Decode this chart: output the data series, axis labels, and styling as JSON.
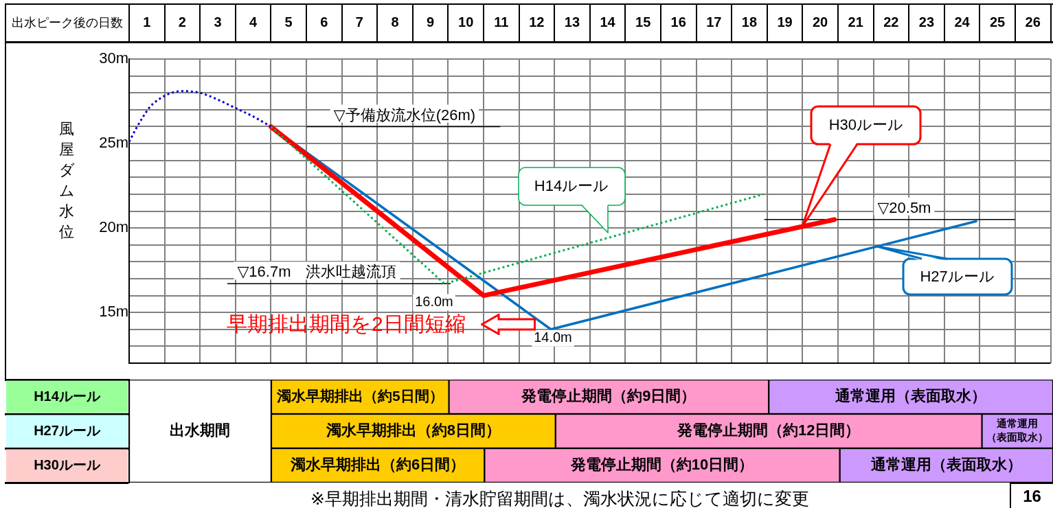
{
  "chart_data": [
    {
      "type": "line",
      "xlabel": "出水ピーク後の日数",
      "ylabel": "風屋ダム水位",
      "xlim": [
        0.5,
        26.5
      ],
      "xticks": [
        1,
        2,
        3,
        4,
        5,
        6,
        7,
        8,
        9,
        10,
        11,
        12,
        13,
        14,
        15,
        16,
        17,
        18,
        19,
        20,
        21,
        22,
        23,
        24,
        25,
        26
      ],
      "ylim": [
        12,
        30
      ],
      "yticks": [
        {
          "value": 12,
          "label": null
        },
        {
          "value": 13,
          "label": null
        },
        {
          "value": 14,
          "label": null
        },
        {
          "value": 15,
          "label": "15m"
        },
        {
          "value": 16,
          "label": null
        },
        {
          "value": 17,
          "label": null
        },
        {
          "value": 18,
          "label": null
        },
        {
          "value": 19,
          "label": null
        },
        {
          "value": 20,
          "label": "20m"
        },
        {
          "value": 21,
          "label": null
        },
        {
          "value": 22,
          "label": null
        },
        {
          "value": 23,
          "label": null
        },
        {
          "value": 24,
          "label": null
        },
        {
          "value": 25,
          "label": "25m"
        },
        {
          "value": 26,
          "label": null
        },
        {
          "value": 27,
          "label": null
        },
        {
          "value": 28,
          "label": null
        },
        {
          "value": 29,
          "label": null
        },
        {
          "value": 30,
          "label": "30m"
        }
      ],
      "grid": true,
      "marker": "none",
      "series": [
        {
          "color": "#0000cc",
          "line_style": "dotted",
          "x": [
            0.5,
            0.7,
            0.9,
            1.1,
            1.4,
            1.7,
            2.0,
            2.5,
            3.0,
            3.5,
            4.0,
            4.5
          ],
          "values": [
            25.1,
            25.9,
            26.6,
            27.2,
            27.7,
            28.0,
            28.1,
            28.0,
            27.6,
            27.1,
            26.6,
            26.0
          ]
        },
        {
          "name": "H14ルール",
          "color": "#00b050",
          "line_style": "dotted",
          "x": [
            4.5,
            9.4,
            18.4
          ],
          "values": [
            26.0,
            16.7,
            22.0
          ]
        },
        {
          "name": "H27ルール",
          "color": "#0070c0",
          "x": [
            4.5,
            12.4,
            24.4
          ],
          "values": [
            26.0,
            14.0,
            20.4
          ]
        },
        {
          "name": "H30ルール",
          "color": "#ff0000",
          "x": [
            4.5,
            10.5,
            20.4
          ],
          "values": [
            26.0,
            16.0,
            20.5
          ]
        }
      ],
      "ref_lines": [
        {
          "axis": "y",
          "value": 26,
          "label": "▽予備放流水位(26m)"
        },
        {
          "axis": "y",
          "value": 16.7,
          "label": "▽16.7m　洪水吐越流頂"
        },
        {
          "axis": "y",
          "value": 20.5,
          "label": "▽20.5m"
        }
      ],
      "annotations": [
        {
          "text": "16.0m",
          "x": 10.5,
          "y": 16.0
        },
        {
          "text": "14.0m",
          "x": 12.4,
          "y": 14.0
        },
        "早期排出期間を2日間短縮"
      ]
    },
    {
      "type": "bar",
      "orientation": "horizontal",
      "categories": [
        "H14ルール",
        "H27ルール",
        "H30ルール"
      ],
      "xlim": [
        0.5,
        26.5
      ],
      "tick_labels": "y",
      "series": [
        {
          "color": "#ffffff",
          "base": [
            0.5,
            0.5,
            0.5
          ],
          "values": [
            4,
            4,
            4
          ],
          "value_labels": [
            null,
            "出水期間",
            null
          ]
        },
        {
          "color": "#ffcc00",
          "base": [
            4.5,
            4.5,
            4.5
          ],
          "values": [
            5,
            8,
            6
          ],
          "value_labels": [
            "濁水早期排出（約5日間）",
            "濁水早期排出（約8日間）",
            "濁水早期排出（約6日間）"
          ]
        },
        {
          "color": "#ff99cc",
          "base": [
            9.5,
            12.5,
            10.5
          ],
          "values": [
            9,
            12,
            10
          ],
          "value_labels": [
            "発電停止期間（約9日間）",
            "発電停止期間（約12日間）",
            "発電停止期間（約10日間）"
          ]
        },
        {
          "color": "#cc99ff",
          "base": [
            18.5,
            24.5,
            20.5
          ],
          "values": [
            8,
            2,
            6
          ],
          "value_labels": [
            "通常運用（表面取水）",
            "通常運用（表面取水）",
            "通常運用（表面取水）"
          ]
        }
      ],
      "annotations": [
        "※早期排出期間・清水貯留期間は、濁水状況に応じて適切に変更",
        "16"
      ]
    }
  ]
}
